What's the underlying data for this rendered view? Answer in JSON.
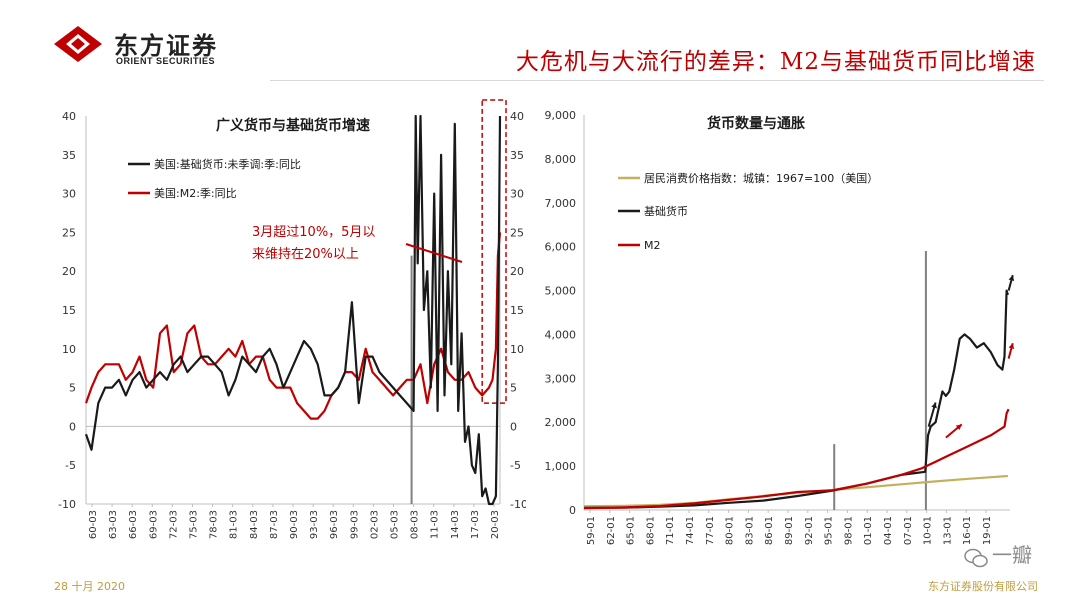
{
  "header": {
    "logo_cn": "东方证券",
    "logo_en": "ORIENT SECURITIES",
    "title": "大危机与大流行的差异：M2与基础货币同比增速"
  },
  "footer": {
    "date": "28 十月 2020",
    "company": "东方证券股份有限公司",
    "watermark": "一瓣"
  },
  "colors": {
    "black_series": "#1a1a1a",
    "red_series": "#c00000",
    "gold_series": "#c4b060",
    "title_red": "#c00000"
  },
  "chart_data": [
    {
      "type": "line",
      "title": "广义货币与基础货币增速",
      "ylim": [
        -10,
        40
      ],
      "yticks": [
        -10,
        -5,
        0,
        5,
        10,
        15,
        20,
        25,
        30,
        35,
        40
      ],
      "x_tick_labels": [
        "60-03",
        "63-03",
        "66-03",
        "69-03",
        "72-03",
        "75-03",
        "78-03",
        "81-03",
        "84-03",
        "87-03",
        "90-03",
        "93-03",
        "96-03",
        "99-03",
        "02-03",
        "05-03",
        "08-03",
        "11-03",
        "14-03",
        "17-03",
        "20-03"
      ],
      "x_range": [
        1960.2,
        2020.6
      ],
      "annotation": {
        "line1": "3月超过10%，5月以",
        "line2": "来维持在20%以上"
      },
      "series": [
        {
          "name": "美国:基础货币:未季调:季:同比",
          "x": [
            1960.2,
            1961,
            1962,
            1963,
            1964,
            1965,
            1966,
            1967,
            1968,
            1969,
            1970,
            1971,
            1972,
            1973,
            1974,
            1975,
            1976,
            1977,
            1978,
            1979,
            1980,
            1981,
            1982,
            1983,
            1984,
            1985,
            1986,
            1987,
            1988,
            1989,
            1990,
            1991,
            1992,
            1993,
            1994,
            1995,
            1996,
            1997,
            1998,
            1999,
            2000,
            2001,
            2002,
            2003,
            2004,
            2005,
            2006,
            2007,
            2008,
            2008.3,
            2008.6,
            2009,
            2009.5,
            2010,
            2010.5,
            2011,
            2011.5,
            2012,
            2012.5,
            2013,
            2013.5,
            2014,
            2014.5,
            2015,
            2015.5,
            2016,
            2016.5,
            2017,
            2017.5,
            2018,
            2018.5,
            2019,
            2019.5,
            2020,
            2020.3,
            2020.6
          ],
          "values": [
            -1,
            -3,
            3,
            5,
            5,
            6,
            4,
            6,
            7,
            5,
            6,
            7,
            6,
            8,
            9,
            7,
            8,
            9,
            9,
            8,
            7,
            4,
            6,
            9,
            8,
            7,
            9,
            10,
            8,
            5,
            7,
            9,
            11,
            10,
            8,
            4,
            4,
            5,
            7,
            16,
            3,
            9,
            9,
            7,
            6,
            5,
            4,
            3,
            2,
            40,
            21,
            40,
            15,
            20,
            5,
            30,
            2,
            35,
            4,
            20,
            8,
            39,
            2,
            12,
            -2,
            0,
            -5,
            -6,
            -1,
            -9,
            -8,
            -10,
            -10,
            -9,
            8,
            40
          ]
        },
        {
          "name": "美国:M2:季:同比",
          "x": [
            1960.2,
            1961,
            1962,
            1963,
            1964,
            1965,
            1966,
            1967,
            1968,
            1969,
            1970,
            1971,
            1972,
            1973,
            1974,
            1975,
            1976,
            1977,
            1978,
            1979,
            1980,
            1981,
            1982,
            1983,
            1984,
            1985,
            1986,
            1987,
            1988,
            1989,
            1990,
            1991,
            1992,
            1993,
            1994,
            1995,
            1996,
            1997,
            1998,
            1999,
            2000,
            2001,
            2002,
            2003,
            2004,
            2005,
            2006,
            2007,
            2008,
            2009,
            2010,
            2011,
            2012,
            2013,
            2014,
            2015,
            2016,
            2017,
            2018,
            2019,
            2019.5,
            2020,
            2020.3,
            2020.6
          ],
          "values": [
            3,
            5,
            7,
            8,
            8,
            8,
            6,
            7,
            9,
            6,
            5,
            12,
            13,
            7,
            8,
            12,
            13,
            9,
            8,
            8,
            9,
            10,
            9,
            11,
            8,
            9,
            9,
            6,
            5,
            5,
            5,
            3,
            2,
            1,
            1,
            2,
            4,
            5,
            7,
            7,
            6,
            10,
            7,
            6,
            5,
            4,
            5,
            6,
            6,
            8,
            3,
            8,
            10,
            7,
            6,
            6,
            7,
            5,
            4,
            5,
            6,
            10,
            22,
            25
          ]
        }
      ]
    },
    {
      "type": "line",
      "title": "货币数量与通胀",
      "ylim": [
        0,
        9000
      ],
      "yticks": [
        "0",
        "1,000",
        "2,000",
        "3,000",
        "4,000",
        "5,000",
        "6,000",
        "7,000",
        "8,000",
        "9,000"
      ],
      "x_tick_labels": [
        "59-01",
        "62-01",
        "65-01",
        "68-01",
        "71-01",
        "74-01",
        "77-01",
        "80-01",
        "83-01",
        "86-01",
        "89-01",
        "92-01",
        "95-01",
        "98-01",
        "01-01",
        "04-01",
        "07-01",
        "10-01",
        "13-01",
        "16-01",
        "19-01"
      ],
      "x_range": [
        1959.0,
        2020.8
      ],
      "series": [
        {
          "name": "居民消费价格指数：城镇：1967=100（美国）",
          "x": [
            1959,
            1965,
            1970,
            1975,
            1980,
            1985,
            1990,
            1995,
            2000,
            2005,
            2010,
            2015,
            2020.5
          ],
          "values": [
            87,
            95,
            116,
            161,
            247,
            322,
            391,
            456,
            517,
            585,
            652,
            714,
            775
          ]
        },
        {
          "name": "基础货币",
          "x": [
            1959,
            1965,
            1970,
            1975,
            1980,
            1985,
            1990,
            1995,
            2000,
            2005,
            2008.5,
            2008.9,
            2009.3,
            2010,
            2011,
            2011.5,
            2012,
            2012.7,
            2013.5,
            2014.2,
            2015,
            2016,
            2017,
            2018,
            2019,
            2019.7,
            2020,
            2020.3,
            2020.5
          ],
          "values": [
            50,
            55,
            75,
            105,
            165,
            215,
            320,
            440,
            600,
            800,
            870,
            1700,
            1900,
            2000,
            2700,
            2600,
            2700,
            3200,
            3900,
            4000,
            3900,
            3700,
            3800,
            3600,
            3300,
            3200,
            3500,
            5000,
            4900
          ]
        },
        {
          "name": "M2",
          "x": [
            1959,
            1965,
            1970,
            1975,
            1980,
            1985,
            1990,
            1995,
            2000,
            2005,
            2008,
            2010,
            2012,
            2014,
            2016,
            2018,
            2019,
            2020,
            2020.3,
            2020.6
          ],
          "values": [
            40,
            60,
            90,
            150,
            230,
            310,
            410,
            450,
            600,
            800,
            950,
            1100,
            1250,
            1400,
            1550,
            1700,
            1800,
            1900,
            2200,
            2300
          ]
        }
      ]
    }
  ]
}
